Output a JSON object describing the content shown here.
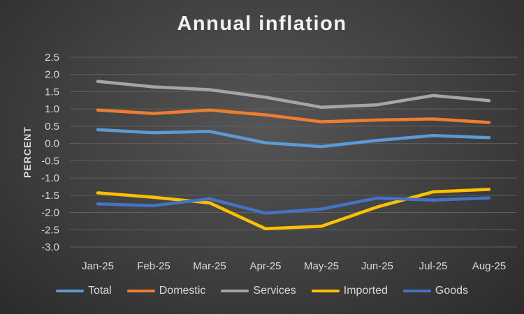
{
  "chart_data": {
    "type": "line",
    "title": "Annual inflation",
    "xlabel": "",
    "ylabel": "PERCENT",
    "ylim": [
      -3.0,
      2.5
    ],
    "ytick_step": 0.5,
    "ytick_labels": [
      "2.5",
      "2.0",
      "1.5",
      "1.0",
      "0.5",
      "0.0",
      "-0.5",
      "-1.0",
      "-1.5",
      "-2.0",
      "-2.5",
      "-3.0"
    ],
    "grid": true,
    "legend_position": "bottom",
    "categories": [
      "Jan-25",
      "Feb-25",
      "Mar-25",
      "Apr-25",
      "May-25",
      "Jun-25",
      "Jul-25",
      "Aug-25"
    ],
    "series": [
      {
        "name": "Total",
        "color": "#5b9bd5",
        "values": [
          0.4,
          0.31,
          0.35,
          0.02,
          -0.09,
          0.09,
          0.23,
          0.17
        ]
      },
      {
        "name": "Domestic",
        "color": "#ed7d31",
        "values": [
          0.97,
          0.87,
          0.97,
          0.83,
          0.63,
          0.68,
          0.71,
          0.61
        ]
      },
      {
        "name": "Services",
        "color": "#a5a5a5",
        "values": [
          1.8,
          1.64,
          1.56,
          1.34,
          1.05,
          1.12,
          1.39,
          1.24
        ]
      },
      {
        "name": "Imported",
        "color": "#ffc000",
        "values": [
          -1.43,
          -1.56,
          -1.72,
          -2.47,
          -2.4,
          -1.84,
          -1.4,
          -1.33
        ]
      },
      {
        "name": "Goods",
        "color": "#4472c4",
        "values": [
          -1.75,
          -1.8,
          -1.6,
          -2.02,
          -1.9,
          -1.58,
          -1.64,
          -1.58
        ]
      }
    ]
  }
}
